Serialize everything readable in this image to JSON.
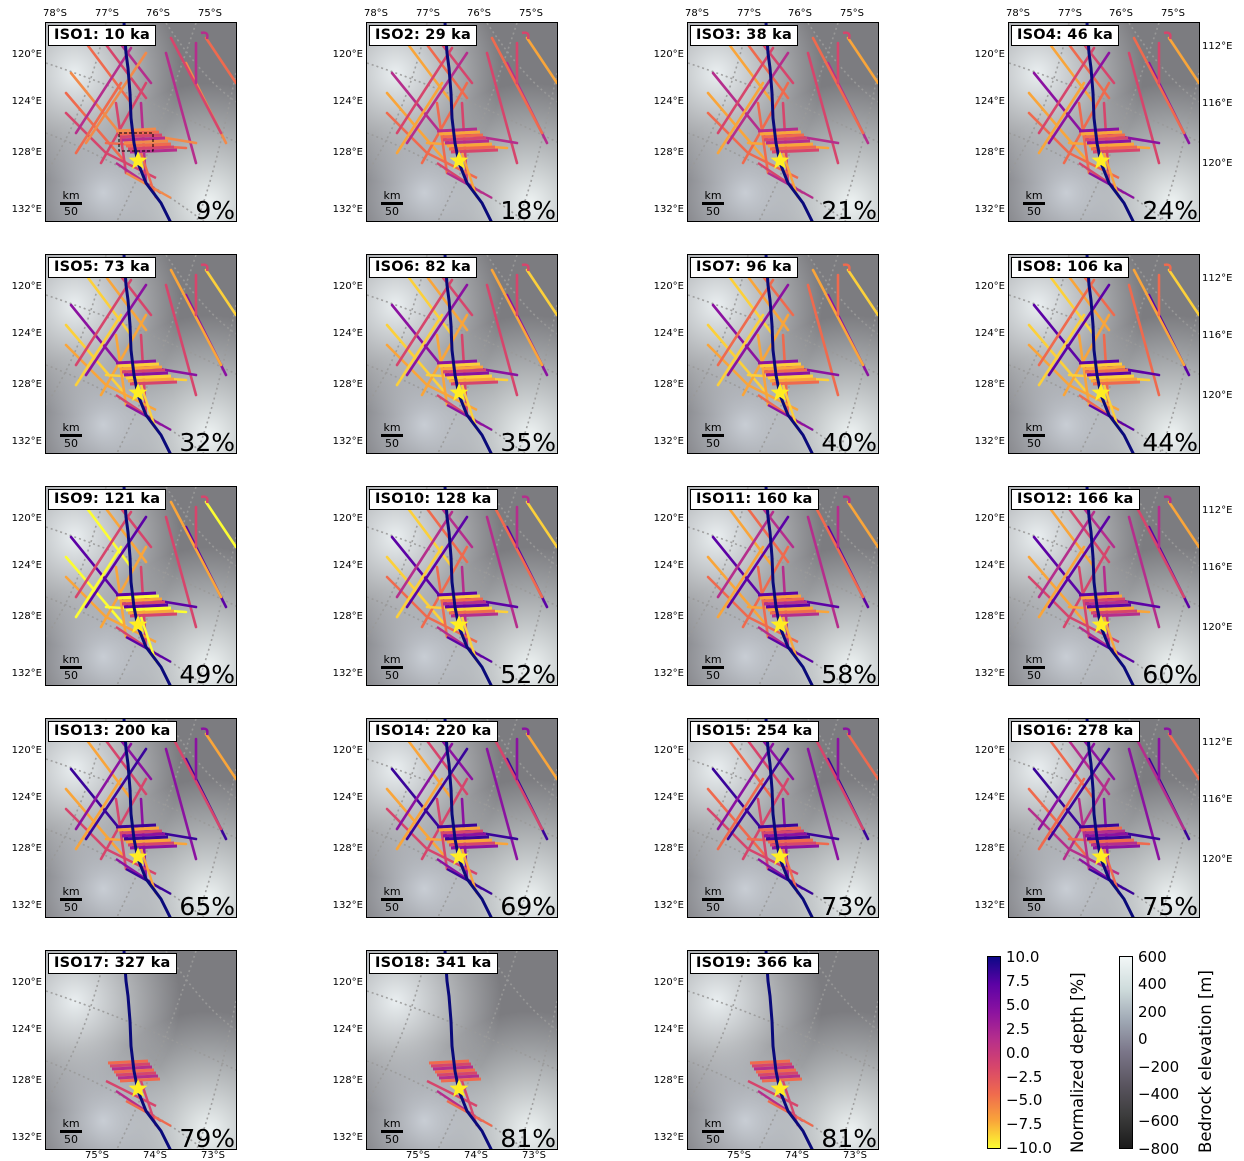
{
  "panels": [
    {
      "label": "ISO1: 10 ka",
      "pct": "9%"
    },
    {
      "label": "ISO2: 29 ka",
      "pct": "18%"
    },
    {
      "label": "ISO3: 38 ka",
      "pct": "21%"
    },
    {
      "label": "ISO4: 46 ka",
      "pct": "24%"
    },
    {
      "label": "ISO5: 73 ka",
      "pct": "32%"
    },
    {
      "label": "ISO6: 82 ka",
      "pct": "35%"
    },
    {
      "label": "ISO7: 96 ka",
      "pct": "40%"
    },
    {
      "label": "ISO8: 106 ka",
      "pct": "44%"
    },
    {
      "label": "ISO9: 121 ka",
      "pct": "49%"
    },
    {
      "label": "ISO10: 128 ka",
      "pct": "52%"
    },
    {
      "label": "ISO11: 160 ka",
      "pct": "58%"
    },
    {
      "label": "ISO12: 166 ka",
      "pct": "60%"
    },
    {
      "label": "ISO13: 200 ka",
      "pct": "65%"
    },
    {
      "label": "ISO14: 220 ka",
      "pct": "69%"
    },
    {
      "label": "ISO15: 254 ka",
      "pct": "73%"
    },
    {
      "label": "ISO16: 278 ka",
      "pct": "75%"
    },
    {
      "label": "ISO17: 327 ka",
      "pct": "79%"
    },
    {
      "label": "ISO18: 341 ka",
      "pct": "81%"
    },
    {
      "label": "ISO19: 366 ka",
      "pct": "81%"
    }
  ],
  "scalebar": {
    "unit": "km",
    "value": "50"
  },
  "left_ticks": [
    "120°E",
    "124°E",
    "128°E",
    "132°E"
  ],
  "right_ticks": [
    "112°E",
    "116°E",
    "120°E"
  ],
  "top_ticks": [
    "78°S",
    "77°S",
    "76°S",
    "75°S"
  ],
  "bottom_ticks": [
    "75°S",
    "74°S",
    "73°S"
  ],
  "colorbar_depth": {
    "label": "Normalized depth [%]",
    "ticks": [
      "10.0",
      "7.5",
      "5.0",
      "2.5",
      "0.0",
      "−2.5",
      "−5.0",
      "−7.5",
      "−10.0"
    ],
    "range": [
      -10,
      10
    ],
    "colormap": [
      "#fcfd32",
      "#f9a53a",
      "#ef6a4e",
      "#d6456c",
      "#b52e8c",
      "#8b12a0",
      "#5c02a5",
      "#0d0887"
    ]
  },
  "colorbar_bedrock": {
    "label": "Bedrock elevation [m]",
    "ticks": [
      "600",
      "400",
      "200",
      "0",
      "−200",
      "−400",
      "−600",
      "−800"
    ],
    "range": [
      -800,
      600
    ]
  },
  "colors": {
    "river": "#0a0a7a",
    "star": "#ffee22",
    "frame": "#000000"
  }
}
